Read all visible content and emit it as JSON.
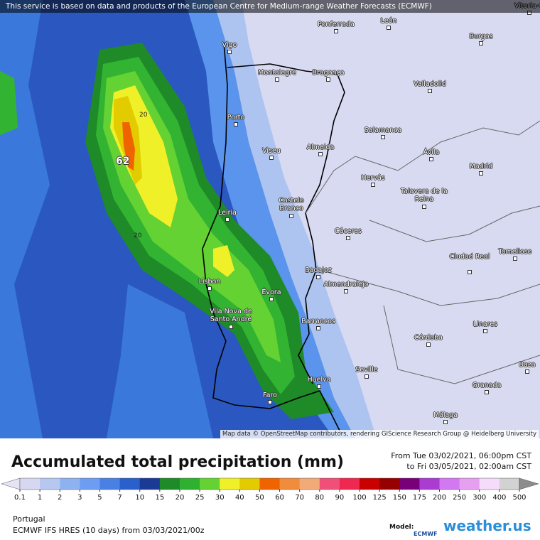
{
  "banner": "This service is based on data and products of the European Centre for Medium-range Weather Forecasts (ECMWF)",
  "map": {
    "labels": [
      "Vitoria-G",
      "Ponferrada",
      "León",
      "Burgos",
      "Vigo",
      "Montalegre",
      "Bragança",
      "Valladolid",
      "Porto",
      "Salamanca",
      "Viseu",
      "Almeida",
      "Ávila",
      "Madrid",
      "Hervás",
      "Talavera de la Reina",
      "Castelo Branco",
      "Leiria",
      "Cáceres",
      "Ciudad Real",
      "Tomelloso",
      "Badajoz",
      "Lisbon",
      "Almendralejo",
      "Évora",
      "Vila Nova de Santo André",
      "Barrancos",
      "Linares",
      "Córdoba",
      "Seville",
      "Baza",
      "Huelva",
      "Granada",
      "Faro",
      "Málaga"
    ],
    "max_value": "62",
    "contour_labels": [
      "20",
      "20"
    ],
    "attribution": "Map data © OpenStreetMap contributors, rendering GIScience Research Group @ Heidelberg University"
  },
  "legend": {
    "title": "Accumulated total precipitation (mm)",
    "period_start": "From Tue 03/02/2021, 06:00pm CST",
    "period_end": "to Fri 03/05/2021, 02:00am CST",
    "levels": [
      0.1,
      1,
      2,
      3,
      5,
      7,
      10,
      15,
      20,
      25,
      30,
      40,
      50,
      60,
      70,
      80,
      90,
      100,
      125,
      150,
      175,
      200,
      250,
      300,
      400,
      500
    ],
    "colors": [
      "#e4e4f4",
      "#d6d8f2",
      "#b6c8f0",
      "#8eb2f0",
      "#6e9cf0",
      "#4a80e4",
      "#2a60cc",
      "#1a3a96",
      "#1e8a28",
      "#30b030",
      "#64d232",
      "#f0f028",
      "#e2cc00",
      "#f06400",
      "#f08c3c",
      "#f2aa78",
      "#f05078",
      "#ee2850",
      "#c80000",
      "#960000",
      "#780078",
      "#aa3cd2",
      "#d278f0",
      "#e6a0f0",
      "#f5dcfa",
      "#d2d2d2",
      "#8c8c8c"
    ]
  },
  "footer": {
    "region": "Portugal",
    "run": "ECMWF IFS HRES (10 days) from 03/03/2021/00z",
    "model_label": "Model:",
    "model": "ECMWF",
    "brand": "weather.us"
  }
}
